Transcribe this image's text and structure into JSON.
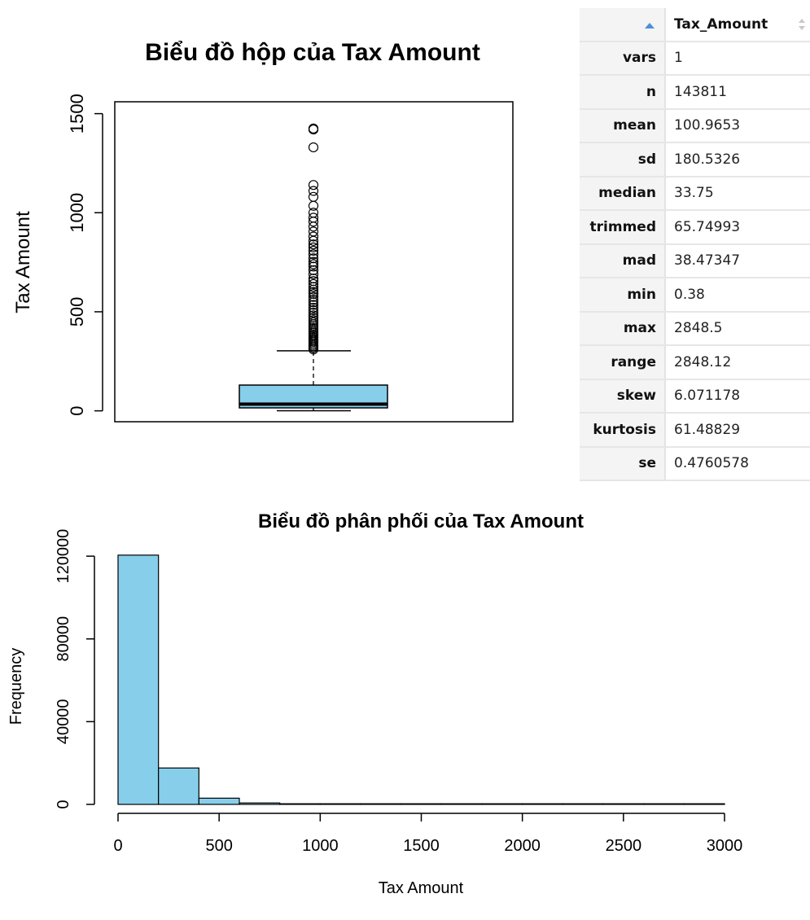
{
  "chart_data": [
    {
      "type": "boxplot",
      "title": "Biểu đồ hộp của Tax Amount",
      "ylabel": "Tax Amount",
      "yticks": [
        "0",
        "500",
        "1000",
        "1500"
      ],
      "ylim": [
        -55,
        1560
      ],
      "box": {
        "lower_whisker": 0.38,
        "q1": 15,
        "median": 33.75,
        "q3": 130,
        "upper_whisker": 303,
        "fill": "#87ceeb"
      },
      "outliers": [
        310,
        318,
        325,
        332,
        340,
        348,
        355,
        362,
        370,
        378,
        385,
        393,
        400,
        410,
        418,
        428,
        437,
        447,
        458,
        470,
        482,
        495,
        508,
        520,
        535,
        548,
        560,
        575,
        590,
        600,
        612,
        625,
        640,
        655,
        668,
        690,
        710,
        728,
        740,
        752,
        770,
        790,
        808,
        825,
        840,
        858,
        880,
        905,
        930,
        955,
        975,
        1000,
        1035,
        1080,
        1110,
        1140,
        1330,
        1420,
        1425
      ]
    },
    {
      "type": "bar",
      "title": "Biểu đồ phân phối của Tax Amount",
      "xlabel": "Tax Amount",
      "ylabel": "Frequency",
      "bin_edges": [
        0,
        200,
        400,
        600,
        800,
        1000,
        1200,
        1400,
        1600,
        1800,
        2000,
        2200,
        2400,
        2600,
        2800,
        3000
      ],
      "values": [
        120500,
        17600,
        3000,
        700,
        180,
        40,
        12,
        5,
        2,
        2,
        1,
        1,
        1,
        1,
        1
      ],
      "xticks": [
        "0",
        "500",
        "1000",
        "1500",
        "2000",
        "2500",
        "3000"
      ],
      "yticks": [
        "0",
        "40000",
        "80000",
        "120000"
      ],
      "xlim": [
        0,
        3000
      ],
      "ylim": [
        0,
        135000
      ],
      "fill": "#87ceeb"
    }
  ],
  "table": {
    "header": "Tax_Amount",
    "rows": [
      {
        "name": "vars",
        "value": "1"
      },
      {
        "name": "n",
        "value": "143811"
      },
      {
        "name": "mean",
        "value": "100.9653"
      },
      {
        "name": "sd",
        "value": "180.5326"
      },
      {
        "name": "median",
        "value": "33.75"
      },
      {
        "name": "trimmed",
        "value": "65.74993"
      },
      {
        "name": "mad",
        "value": "38.47347"
      },
      {
        "name": "min",
        "value": "0.38"
      },
      {
        "name": "max",
        "value": "2848.5"
      },
      {
        "name": "range",
        "value": "2848.12"
      },
      {
        "name": "skew",
        "value": "6.071178"
      },
      {
        "name": "kurtosis",
        "value": "61.48829"
      },
      {
        "name": "se",
        "value": "0.4760578"
      }
    ]
  }
}
